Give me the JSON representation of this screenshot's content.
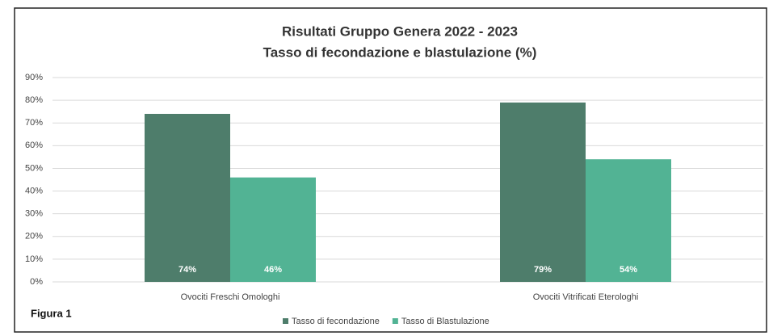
{
  "chart_data": {
    "type": "bar",
    "title": "Risultati Gruppo Genera 2022 - 2023",
    "subtitle": "Tasso di fecondazione e blastulazione (%)",
    "annotation": "Figura 1",
    "categories": [
      "Ovociti Freschi Omologhi",
      "Ovociti Vitrificati Eterologhi"
    ],
    "series": [
      {
        "name": "Tasso di fecondazione",
        "color": "#4e7d6b",
        "values": [
          74,
          79
        ],
        "value_labels": [
          "74%",
          "79%"
        ]
      },
      {
        "name": "Tasso di Blastulazione",
        "color": "#52b394",
        "values": [
          46,
          54
        ],
        "value_labels": [
          "46%",
          "54%"
        ]
      }
    ],
    "ylim": [
      0,
      90
    ],
    "yticks": [
      {
        "value": 0,
        "label": "0%"
      },
      {
        "value": 10,
        "label": "10%"
      },
      {
        "value": 20,
        "label": "20%"
      },
      {
        "value": 30,
        "label": "30%"
      },
      {
        "value": 40,
        "label": "40%"
      },
      {
        "value": 50,
        "label": "50%"
      },
      {
        "value": 60,
        "label": "60%"
      },
      {
        "value": 70,
        "label": "70%"
      },
      {
        "value": 80,
        "label": "80%"
      },
      {
        "value": 90,
        "label": "90%"
      }
    ],
    "grid": true,
    "legend": "bottom"
  }
}
